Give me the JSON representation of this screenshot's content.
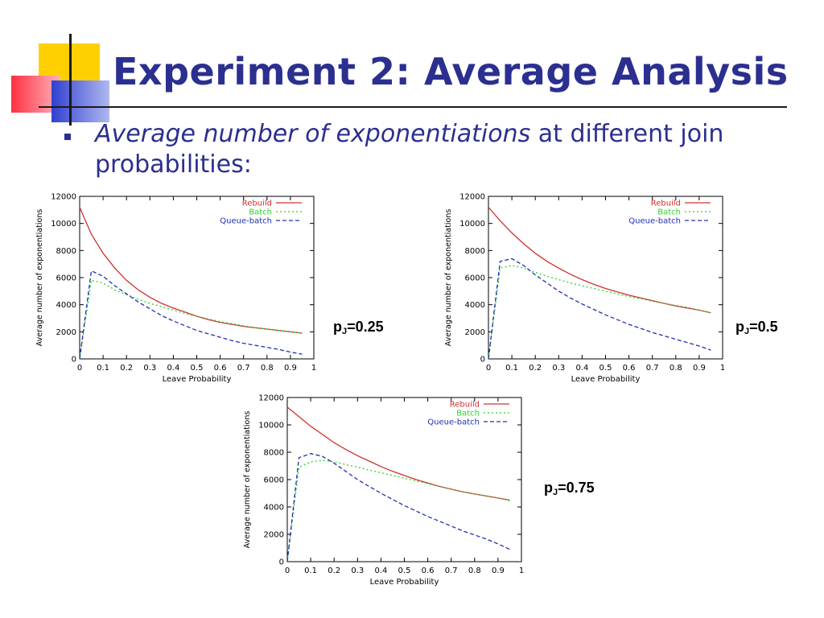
{
  "slide": {
    "title": "Experiment 2: Average Analysis",
    "bullet_italic": "Average number of exponentiations",
    "bullet_rest": " at different join probabilities:"
  },
  "colors": {
    "rebuild": "#d03030",
    "batch": "#30d030",
    "queue_batch": "#2030b0",
    "text": "#2b2f8f"
  },
  "chart_data": [
    {
      "type": "line",
      "panel_label": {
        "prefix": "p",
        "sub": "J",
        "value": "=0.25"
      },
      "xlabel": "Leave Probability",
      "ylabel": "Average number of exponentiations",
      "xlim": [
        0,
        1
      ],
      "ylim": [
        0,
        12000
      ],
      "xticks": [
        0,
        0.1,
        0.2,
        0.3,
        0.4,
        0.5,
        0.6,
        0.7,
        0.8,
        0.9,
        1
      ],
      "yticks": [
        0,
        2000,
        4000,
        6000,
        8000,
        10000,
        12000
      ],
      "legend": "top-right",
      "series": [
        {
          "name": "Rebuild",
          "style": "solid",
          "color": "#d03030",
          "x": [
            0,
            0.05,
            0.1,
            0.15,
            0.2,
            0.25,
            0.3,
            0.35,
            0.4,
            0.45,
            0.5,
            0.55,
            0.6,
            0.65,
            0.7,
            0.75,
            0.8,
            0.85,
            0.9,
            0.95
          ],
          "y": [
            11200,
            9200,
            7800,
            6700,
            5800,
            5100,
            4550,
            4100,
            3750,
            3450,
            3150,
            2900,
            2700,
            2550,
            2400,
            2300,
            2200,
            2100,
            2000,
            1900
          ]
        },
        {
          "name": "Batch",
          "style": "dotted",
          "color": "#30d030",
          "x": [
            0,
            0.05,
            0.1,
            0.15,
            0.2,
            0.25,
            0.3,
            0.35,
            0.4,
            0.45,
            0.5,
            0.55,
            0.6,
            0.65,
            0.7,
            0.75,
            0.8,
            0.85,
            0.9,
            0.95
          ],
          "y": [
            0,
            5800,
            5600,
            5100,
            4750,
            4400,
            4100,
            3850,
            3600,
            3350,
            3150,
            2950,
            2750,
            2600,
            2450,
            2300,
            2200,
            2100,
            2000,
            1900
          ]
        },
        {
          "name": "Queue-batch",
          "style": "dashed",
          "color": "#2030b0",
          "x": [
            0,
            0.05,
            0.1,
            0.15,
            0.2,
            0.25,
            0.3,
            0.35,
            0.4,
            0.45,
            0.5,
            0.55,
            0.6,
            0.65,
            0.7,
            0.75,
            0.8,
            0.85,
            0.9,
            0.95
          ],
          "y": [
            0,
            6500,
            6100,
            5400,
            4800,
            4200,
            3700,
            3200,
            2800,
            2450,
            2100,
            1850,
            1600,
            1350,
            1150,
            1000,
            850,
            700,
            500,
            350
          ]
        }
      ]
    },
    {
      "type": "line",
      "panel_label": {
        "prefix": "p",
        "sub": "J",
        "value": "=0.5"
      },
      "xlabel": "Leave Probability",
      "ylabel": "Average number of exponentiations",
      "xlim": [
        0,
        1
      ],
      "ylim": [
        0,
        12000
      ],
      "xticks": [
        0,
        0.1,
        0.2,
        0.3,
        0.4,
        0.5,
        0.6,
        0.7,
        0.8,
        0.9,
        1
      ],
      "yticks": [
        0,
        2000,
        4000,
        6000,
        8000,
        10000,
        12000
      ],
      "legend": "top-right",
      "series": [
        {
          "name": "Rebuild",
          "style": "solid",
          "color": "#d03030",
          "x": [
            0,
            0.05,
            0.1,
            0.15,
            0.2,
            0.25,
            0.3,
            0.35,
            0.4,
            0.45,
            0.5,
            0.55,
            0.6,
            0.65,
            0.7,
            0.75,
            0.8,
            0.85,
            0.9,
            0.95
          ],
          "y": [
            11200,
            10200,
            9300,
            8500,
            7800,
            7200,
            6700,
            6250,
            5850,
            5500,
            5200,
            4950,
            4700,
            4500,
            4300,
            4100,
            3900,
            3750,
            3600,
            3400
          ]
        },
        {
          "name": "Batch",
          "style": "dotted",
          "color": "#30d030",
          "x": [
            0,
            0.05,
            0.1,
            0.15,
            0.2,
            0.25,
            0.3,
            0.35,
            0.4,
            0.45,
            0.5,
            0.55,
            0.6,
            0.65,
            0.7,
            0.75,
            0.8,
            0.85,
            0.9,
            0.95
          ],
          "y": [
            0,
            6700,
            6900,
            6700,
            6400,
            6100,
            5850,
            5600,
            5400,
            5200,
            5000,
            4800,
            4600,
            4450,
            4250,
            4100,
            3950,
            3800,
            3600,
            3400
          ]
        },
        {
          "name": "Queue-batch",
          "style": "dashed",
          "color": "#2030b0",
          "x": [
            0,
            0.05,
            0.1,
            0.15,
            0.2,
            0.25,
            0.3,
            0.35,
            0.4,
            0.45,
            0.5,
            0.55,
            0.6,
            0.65,
            0.7,
            0.75,
            0.8,
            0.85,
            0.9,
            0.95
          ],
          "y": [
            0,
            7200,
            7400,
            6900,
            6200,
            5600,
            5000,
            4500,
            4050,
            3650,
            3250,
            2900,
            2550,
            2250,
            1950,
            1700,
            1450,
            1200,
            950,
            650
          ]
        }
      ]
    },
    {
      "type": "line",
      "panel_label": {
        "prefix": "p",
        "sub": "J",
        "value": "=0.75"
      },
      "xlabel": "Leave Probability",
      "ylabel": "Average number of exponentiations",
      "xlim": [
        0,
        1
      ],
      "ylim": [
        0,
        12000
      ],
      "xticks": [
        0,
        0.1,
        0.2,
        0.3,
        0.4,
        0.5,
        0.6,
        0.7,
        0.8,
        0.9,
        1
      ],
      "yticks": [
        0,
        2000,
        4000,
        6000,
        8000,
        10000,
        12000
      ],
      "legend": "top-right",
      "series": [
        {
          "name": "Rebuild",
          "style": "solid",
          "color": "#d03030",
          "x": [
            0,
            0.05,
            0.1,
            0.15,
            0.2,
            0.25,
            0.3,
            0.35,
            0.4,
            0.45,
            0.5,
            0.55,
            0.6,
            0.65,
            0.7,
            0.75,
            0.8,
            0.85,
            0.9,
            0.95
          ],
          "y": [
            11300,
            10600,
            9900,
            9300,
            8700,
            8200,
            7750,
            7350,
            6950,
            6600,
            6300,
            6000,
            5750,
            5500,
            5300,
            5100,
            4950,
            4800,
            4650,
            4500
          ]
        },
        {
          "name": "Batch",
          "style": "dotted",
          "color": "#30d030",
          "x": [
            0,
            0.05,
            0.1,
            0.15,
            0.2,
            0.25,
            0.3,
            0.35,
            0.4,
            0.45,
            0.5,
            0.55,
            0.6,
            0.65,
            0.7,
            0.75,
            0.8,
            0.85,
            0.9,
            0.95
          ],
          "y": [
            0,
            6900,
            7300,
            7400,
            7300,
            7100,
            6900,
            6700,
            6500,
            6300,
            6100,
            5900,
            5700,
            5500,
            5300,
            5100,
            4950,
            4800,
            4650,
            4450
          ]
        },
        {
          "name": "Queue-batch",
          "style": "dashed",
          "color": "#2030b0",
          "x": [
            0,
            0.05,
            0.1,
            0.15,
            0.2,
            0.25,
            0.3,
            0.35,
            0.4,
            0.45,
            0.5,
            0.55,
            0.6,
            0.65,
            0.7,
            0.75,
            0.8,
            0.85,
            0.9,
            0.95
          ],
          "y": [
            0,
            7600,
            7900,
            7700,
            7200,
            6600,
            6000,
            5500,
            5000,
            4550,
            4100,
            3700,
            3300,
            2950,
            2600,
            2250,
            1950,
            1650,
            1300,
            900
          ]
        }
      ]
    }
  ]
}
